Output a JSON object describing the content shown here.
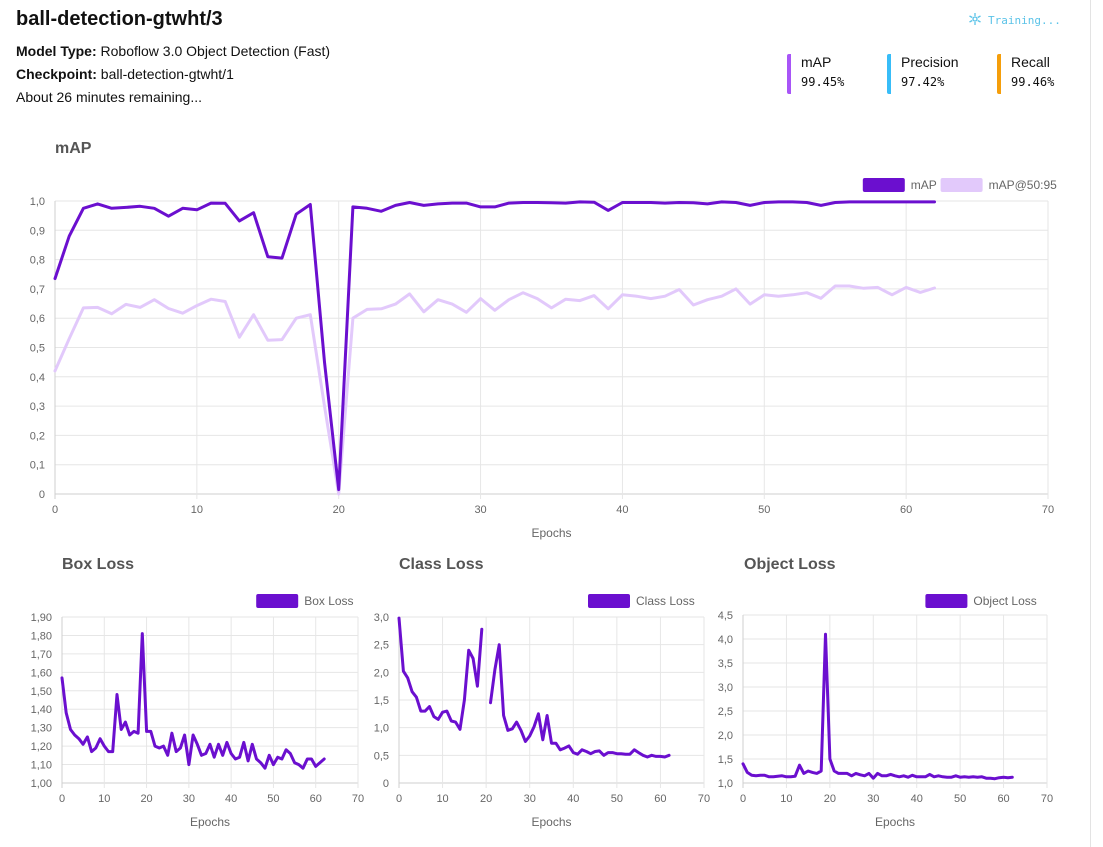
{
  "header": {
    "title": "ball-detection-gtwht/3",
    "model_type_label": "Model Type:",
    "model_type_value": "Roboflow 3.0 Object Detection (Fast)",
    "checkpoint_label": "Checkpoint:",
    "checkpoint_value": "ball-detection-gtwht/1",
    "remaining": "About 26 minutes remaining...",
    "status": "Training...",
    "status_icon": "training-spinner-icon",
    "status_color": "#5bc3e8"
  },
  "metrics": [
    {
      "label": "mAP",
      "value": "99.45%",
      "color": "#a855f7"
    },
    {
      "label": "Precision",
      "value": "97.42%",
      "color": "#38bdf8"
    },
    {
      "label": "Recall",
      "value": "99.46%",
      "color": "#f59e0b"
    }
  ],
  "colors": {
    "primary": "#6b0fcf",
    "secondary": "#e2c9fb",
    "grid": "#e6e6e6"
  },
  "chart_data": [
    {
      "type": "line",
      "title": "mAP",
      "xlabel": "Epochs",
      "ylabel": "",
      "xlim": [
        0,
        70
      ],
      "ylim": [
        0,
        1
      ],
      "x_ticks": [
        "0",
        "10",
        "20",
        "30",
        "40",
        "50",
        "60",
        "70"
      ],
      "y_ticks": [
        "0",
        "0,1",
        "0,2",
        "0,3",
        "0,4",
        "0,5",
        "0,6",
        "0,7",
        "0,8",
        "0,9",
        "1,0"
      ],
      "grid": true,
      "legend": "top-right",
      "series": [
        {
          "name": "mAP",
          "color": "#6b0fcf",
          "values": [
            0.735,
            0.88,
            0.975,
            0.99,
            0.975,
            0.978,
            0.982,
            0.975,
            0.948,
            0.975,
            0.97,
            0.993,
            0.992,
            0.932,
            0.96,
            0.81,
            0.805,
            0.955,
            0.988,
            0.45,
            0.015,
            0.98,
            0.975,
            0.965,
            0.985,
            0.995,
            0.985,
            0.99,
            0.993,
            0.993,
            0.98,
            0.98,
            0.993,
            0.995,
            0.995,
            0.994,
            0.993,
            0.997,
            0.996,
            0.968,
            0.995,
            0.995,
            0.995,
            0.993,
            0.995,
            0.994,
            0.99,
            0.997,
            0.995,
            0.985,
            0.995,
            0.997,
            0.997,
            0.995,
            0.985,
            0.995,
            0.997,
            0.997,
            0.997,
            0.997,
            0.997,
            0.997,
            0.997
          ]
        },
        {
          "name": "mAP@50:95",
          "color": "#e2c9fb",
          "values": [
            0.42,
            0.53,
            0.635,
            0.637,
            0.615,
            0.647,
            0.637,
            0.663,
            0.633,
            0.617,
            0.643,
            0.665,
            0.657,
            0.535,
            0.612,
            0.525,
            0.527,
            0.6,
            0.612,
            0.3,
            0.0,
            0.6,
            0.63,
            0.632,
            0.648,
            0.683,
            0.622,
            0.663,
            0.648,
            0.62,
            0.667,
            0.627,
            0.663,
            0.687,
            0.667,
            0.635,
            0.665,
            0.66,
            0.677,
            0.632,
            0.68,
            0.675,
            0.667,
            0.675,
            0.698,
            0.645,
            0.663,
            0.675,
            0.7,
            0.648,
            0.68,
            0.675,
            0.68,
            0.687,
            0.668,
            0.71,
            0.71,
            0.702,
            0.705,
            0.68,
            0.705,
            0.688,
            0.703
          ]
        }
      ]
    },
    {
      "type": "line",
      "title": "Box Loss",
      "xlabel": "Epochs",
      "ylabel": "",
      "xlim": [
        0,
        70
      ],
      "ylim": [
        1.0,
        1.9
      ],
      "x_ticks": [
        "0",
        "10",
        "20",
        "30",
        "40",
        "50",
        "60",
        "70"
      ],
      "y_ticks": [
        "1,00",
        "1,10",
        "1,20",
        "1,30",
        "1,40",
        "1,50",
        "1,60",
        "1,70",
        "1,80",
        "1,90"
      ],
      "grid": true,
      "legend": "top-right",
      "series": [
        {
          "name": "Box Loss",
          "color": "#6b0fcf",
          "values": [
            1.57,
            1.38,
            1.29,
            1.26,
            1.24,
            1.21,
            1.25,
            1.17,
            1.19,
            1.24,
            1.2,
            1.17,
            1.17,
            1.48,
            1.29,
            1.33,
            1.26,
            1.28,
            1.27,
            1.81,
            1.28,
            1.28,
            1.2,
            1.19,
            1.2,
            1.15,
            1.27,
            1.17,
            1.19,
            1.26,
            1.1,
            1.26,
            1.21,
            1.15,
            1.16,
            1.21,
            1.14,
            1.21,
            1.15,
            1.22,
            1.16,
            1.13,
            1.14,
            1.22,
            1.12,
            1.21,
            1.13,
            1.11,
            1.08,
            1.15,
            1.1,
            1.14,
            1.13,
            1.18,
            1.16,
            1.11,
            1.1,
            1.08,
            1.13,
            1.13,
            1.09,
            1.11,
            1.13
          ]
        }
      ]
    },
    {
      "type": "line",
      "title": "Class Loss",
      "xlabel": "Epochs",
      "ylabel": "",
      "xlim": [
        0,
        70
      ],
      "ylim": [
        0,
        3.0
      ],
      "x_ticks": [
        "0",
        "10",
        "20",
        "30",
        "40",
        "50",
        "60",
        "70"
      ],
      "y_ticks": [
        "0",
        "0,5",
        "1,0",
        "1,5",
        "2,0",
        "2,5",
        "3,0"
      ],
      "grid": true,
      "legend": "top-right",
      "series": [
        {
          "name": "Class Loss",
          "color": "#6b0fcf",
          "values": [
            2.98,
            2.02,
            1.9,
            1.65,
            1.55,
            1.3,
            1.3,
            1.38,
            1.2,
            1.15,
            1.28,
            1.3,
            1.12,
            1.1,
            0.97,
            1.5,
            2.4,
            2.25,
            1.75,
            2.78,
            null,
            1.45,
            2.05,
            2.5,
            1.22,
            0.95,
            0.98,
            1.1,
            0.95,
            0.75,
            0.85,
            1.02,
            1.25,
            0.78,
            1.22,
            0.72,
            0.72,
            0.6,
            0.63,
            0.67,
            0.55,
            0.52,
            0.6,
            0.57,
            0.53,
            0.57,
            0.58,
            0.5,
            0.55,
            0.55,
            0.53,
            0.53,
            0.52,
            0.52,
            0.6,
            0.55,
            0.5,
            0.47,
            0.5,
            0.48,
            0.48,
            0.47,
            0.5
          ]
        }
      ]
    },
    {
      "type": "line",
      "title": "Object Loss",
      "xlabel": "Epochs",
      "ylabel": "",
      "xlim": [
        0,
        70
      ],
      "ylim": [
        1.0,
        4.5
      ],
      "x_ticks": [
        "0",
        "10",
        "20",
        "30",
        "40",
        "50",
        "60",
        "70"
      ],
      "y_ticks": [
        "1,0",
        "1,5",
        "2,0",
        "2,5",
        "3,0",
        "3,5",
        "4,0",
        "4,5"
      ],
      "grid": true,
      "legend": "top-right",
      "series": [
        {
          "name": "Object Loss",
          "color": "#6b0fcf",
          "values": [
            1.4,
            1.22,
            1.16,
            1.15,
            1.16,
            1.16,
            1.13,
            1.13,
            1.14,
            1.15,
            1.13,
            1.13,
            1.14,
            1.37,
            1.2,
            1.25,
            1.22,
            1.2,
            1.25,
            4.1,
            1.5,
            1.25,
            1.2,
            1.2,
            1.2,
            1.15,
            1.2,
            1.17,
            1.15,
            1.2,
            1.1,
            1.2,
            1.15,
            1.15,
            1.18,
            1.15,
            1.13,
            1.15,
            1.12,
            1.16,
            1.13,
            1.13,
            1.13,
            1.18,
            1.13,
            1.15,
            1.13,
            1.12,
            1.12,
            1.15,
            1.12,
            1.13,
            1.12,
            1.13,
            1.12,
            1.13,
            1.1,
            1.1,
            1.09,
            1.11,
            1.12,
            1.11,
            1.12
          ]
        }
      ]
    }
  ]
}
